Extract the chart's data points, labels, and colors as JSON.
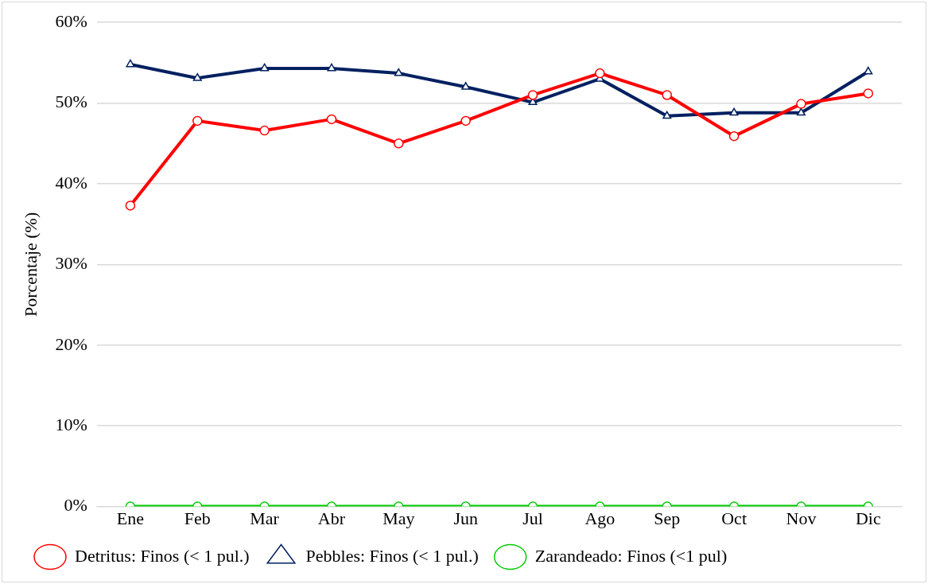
{
  "chart_data": {
    "type": "line",
    "ylabel": "Porcentaje (%)",
    "categories": [
      "Ene",
      "Feb",
      "Mar",
      "Abr",
      "May",
      "Jun",
      "Jul",
      "Ago",
      "Sep",
      "Oct",
      "Nov",
      "Dic"
    ],
    "series": [
      {
        "name": "Detritus: Finos (< 1 pul.)",
        "color": "#ff0000",
        "marker": "circle",
        "values": [
          37.3,
          47.8,
          46.6,
          48.0,
          45.0,
          47.8,
          51.0,
          53.7,
          51.0,
          45.9,
          49.9,
          51.2
        ]
      },
      {
        "name": "Pebbles: Finos (< 1 pul.)",
        "color": "#002060",
        "marker": "triangle",
        "values": [
          54.8,
          53.1,
          54.3,
          54.3,
          53.7,
          52.0,
          50.1,
          53.0,
          48.4,
          48.8,
          48.8,
          53.9
        ]
      },
      {
        "name": "Zarandeado: Finos (<1 pul)",
        "color": "#00cc00",
        "marker": "circle",
        "values": [
          0,
          0,
          0,
          0,
          0,
          0,
          0,
          0,
          0,
          0,
          0,
          0
        ]
      }
    ],
    "ylim": [
      0,
      60
    ],
    "yticks": [
      {
        "value": 0,
        "label": "0%"
      },
      {
        "value": 10,
        "label": "10%"
      },
      {
        "value": 20,
        "label": "20%"
      },
      {
        "value": 30,
        "label": "30%"
      },
      {
        "value": 40,
        "label": "40%"
      },
      {
        "value": 50,
        "label": "50%"
      },
      {
        "value": 60,
        "label": "60%"
      }
    ],
    "grid": "y",
    "legend": "bottom",
    "line_style": "solid"
  }
}
